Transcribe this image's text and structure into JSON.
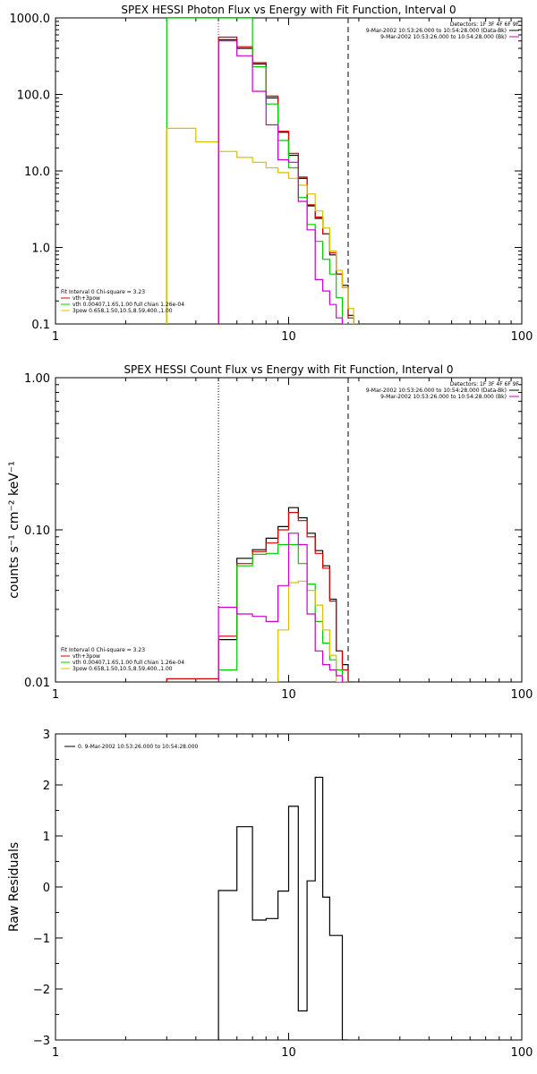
{
  "colors": {
    "data_bk": "#000000",
    "total_fit": "#d60000",
    "vth": "#00cc00",
    "powerlaw": "#d8c000",
    "background": "#cc00cc"
  },
  "chart_data": [
    {
      "id": "photon",
      "type": "line",
      "title": "SPEX HESSI Photon Flux vs Energy with Fit Function, Interval 0",
      "xlabel": "",
      "ylabel": "",
      "x_scale": "log",
      "y_scale": "log",
      "xlim": [
        1,
        100
      ],
      "ylim": [
        0.1,
        1000
      ],
      "x_ticks": [
        1,
        10,
        100
      ],
      "x_tick_labels": [
        "1",
        "10",
        "100"
      ],
      "y_ticks": [
        0.1,
        1,
        10,
        100,
        1000
      ],
      "y_tick_labels": [
        "0.1",
        "1.0",
        "10.0",
        "100.0",
        "1000.0"
      ],
      "vlines": [
        {
          "x": 5.0,
          "style": "dotted",
          "color": "magenta"
        },
        {
          "x": 18.0,
          "style": "dashed",
          "color": "black"
        }
      ],
      "legend_top": [
        "Detectors: 1F 3F 4F 6F 9F",
        "9-Mar-2002 10:53:26.000 to 10:54:28.000 (Data-Bk)",
        "9-Mar-2002 10:53:26.000 to 10:54:28.000 (Bk)"
      ],
      "legend_bottom": [
        "Fit Interval 0   Chi-square = 3.23",
        "vth+3pow",
        "vth 0.00407,1.65,1.00  full chian 1.26e-04",
        "3pow 0.658,1.50,10.5,8.59,400.,1.00"
      ],
      "bin_edges": [
        3.0,
        4.0,
        5.0,
        5.5,
        6.0,
        6.5,
        7.0,
        7.5,
        8.0,
        9.0,
        10.0,
        11.0,
        12.0,
        13.0,
        14.0,
        15.0,
        16.0,
        17.0,
        18.0,
        19.0,
        20.0
      ],
      "series": [
        {
          "name": "Data-Bk",
          "color_key": "data_bk",
          "values": [
            null,
            null,
            520,
            520,
            400,
            400,
            250,
            250,
            90,
            32,
            16,
            8,
            3.5,
            2.4,
            1.5,
            0.8,
            0.45,
            0.32,
            0.13,
            0.1
          ]
        },
        {
          "name": "vth+3pow",
          "color_key": "total_fit",
          "values": [
            null,
            null,
            560,
            560,
            420,
            420,
            260,
            260,
            95,
            33,
            17,
            8.3,
            3.6,
            2.5,
            1.5,
            0.85,
            0.45,
            0.3,
            0.12,
            0.1
          ]
        },
        {
          "name": "vth",
          "color_key": "vth",
          "values": [
            1000,
            1000,
            1000,
            1000,
            1000,
            1000,
            230,
            230,
            75,
            25,
            11,
            4.5,
            2.0,
            1.2,
            0.7,
            0.45,
            0.22,
            0.1,
            0.1,
            0.1
          ]
        },
        {
          "name": "3pow",
          "color_key": "powerlaw",
          "values": [
            36,
            24,
            18,
            18,
            15,
            15,
            13,
            13,
            11,
            9.5,
            8.0,
            6.5,
            5.0,
            3.0,
            1.8,
            0.9,
            0.5,
            0.3,
            0.16,
            0.1
          ]
        },
        {
          "name": "Bk",
          "color_key": "background",
          "values": [
            null,
            null,
            500,
            500,
            320,
            320,
            110,
            110,
            40,
            14,
            13,
            4.0,
            1.7,
            0.38,
            0.27,
            0.18,
            0.12,
            null,
            null,
            null
          ]
        }
      ]
    },
    {
      "id": "count",
      "type": "line",
      "title": "SPEX HESSI Count Flux vs Energy with Fit Function, Interval 0",
      "xlabel": "",
      "ylabel": "counts s⁻¹ cm⁻² keV⁻¹",
      "x_scale": "log",
      "y_scale": "log",
      "xlim": [
        1,
        100
      ],
      "ylim": [
        0.01,
        1.0
      ],
      "x_ticks": [
        1,
        10,
        100
      ],
      "x_tick_labels": [
        "1",
        "10",
        "100"
      ],
      "y_ticks": [
        0.01,
        0.1,
        1.0
      ],
      "y_tick_labels": [
        "0.01",
        "0.10",
        "1.00"
      ],
      "vlines": [
        {
          "x": 5.0,
          "style": "dotted",
          "color": "black"
        },
        {
          "x": 18.0,
          "style": "dashed",
          "color": "black"
        }
      ],
      "legend_top": [
        "Detectors: 1F 3F 4F 6F 9F",
        "9-Mar-2002 10:53:26.000 to 10:54:28.000 (Data-Bk)",
        "9-Mar-2002 10:53:26.000 to 10:54:28.000 (Bk)"
      ],
      "legend_bottom": [
        "Fit Interval 0   Chi-square = 3.23",
        "vth+3pow",
        "vth 0.00407,1.65,1.00  full chian 1.26e-04",
        "3pow 0.658,1.50,10.5,8.59,400.,1.00"
      ],
      "bin_edges": [
        3.0,
        4.0,
        5.0,
        6.0,
        7.0,
        8.0,
        9.0,
        10.0,
        11.0,
        12.0,
        13.0,
        14.0,
        15.0,
        16.0,
        17.0,
        18.0,
        19.0,
        20.0
      ],
      "series": [
        {
          "name": "Data-Bk",
          "color_key": "data_bk",
          "values": [
            null,
            null,
            0.019,
            0.065,
            0.074,
            0.088,
            0.105,
            0.14,
            0.12,
            0.095,
            0.073,
            0.058,
            0.035,
            0.016,
            0.013,
            0.01,
            null
          ]
        },
        {
          "name": "vth+3pow",
          "color_key": "total_fit",
          "values": [
            0.0105,
            0.0105,
            0.02,
            0.06,
            0.072,
            0.082,
            0.1,
            0.13,
            0.115,
            0.09,
            0.07,
            0.056,
            0.034,
            0.016,
            0.012,
            0.01,
            null
          ]
        },
        {
          "name": "vth",
          "color_key": "vth",
          "values": [
            null,
            null,
            0.012,
            0.058,
            0.069,
            0.07,
            0.08,
            0.08,
            0.06,
            0.044,
            0.025,
            0.018,
            0.014,
            0.012,
            0.01,
            null,
            null
          ]
        },
        {
          "name": "3pow",
          "color_key": "powerlaw",
          "values": [
            null,
            null,
            null,
            null,
            null,
            0.01,
            0.022,
            0.045,
            0.046,
            0.04,
            0.032,
            0.022,
            0.015,
            0.01,
            null,
            null,
            null
          ]
        },
        {
          "name": "Bk",
          "color_key": "background",
          "values": [
            null,
            null,
            0.031,
            0.028,
            0.027,
            0.025,
            0.043,
            0.095,
            0.08,
            0.028,
            0.016,
            0.013,
            0.012,
            0.011,
            null,
            null,
            null
          ]
        }
      ]
    },
    {
      "id": "residuals",
      "type": "line",
      "title": "",
      "xlabel": "",
      "ylabel": "Raw Residuals",
      "x_scale": "log",
      "y_scale": "linear",
      "xlim": [
        1,
        100
      ],
      "ylim": [
        -3,
        3
      ],
      "x_ticks": [
        1,
        10,
        100
      ],
      "x_tick_labels": [
        "1",
        "10",
        "100"
      ],
      "y_ticks": [
        -3,
        -2,
        -1,
        0,
        1,
        2,
        3
      ],
      "y_tick_labels": [
        "−3",
        "−2",
        "−1",
        "0",
        "1",
        "2",
        "3"
      ],
      "legend_top": [
        "0.  9-Mar-2002 10:53:26.000 to 10:54:28.000"
      ],
      "bin_edges": [
        5.0,
        6.0,
        7.0,
        8.0,
        9.0,
        10.0,
        11.0,
        12.0,
        13.0,
        14.0,
        15.0,
        16.0,
        17.0,
        18.0
      ],
      "series": [
        {
          "name": "0.  9-Mar-2002 10:53:26.000 to 10:54:28.000",
          "color_key": "data_bk",
          "values": [
            -0.07,
            1.18,
            -0.65,
            -0.62,
            -0.08,
            1.58,
            -2.43,
            0.12,
            2.15,
            -0.2,
            -0.95,
            -0.95,
            -3.0
          ]
        }
      ]
    }
  ]
}
